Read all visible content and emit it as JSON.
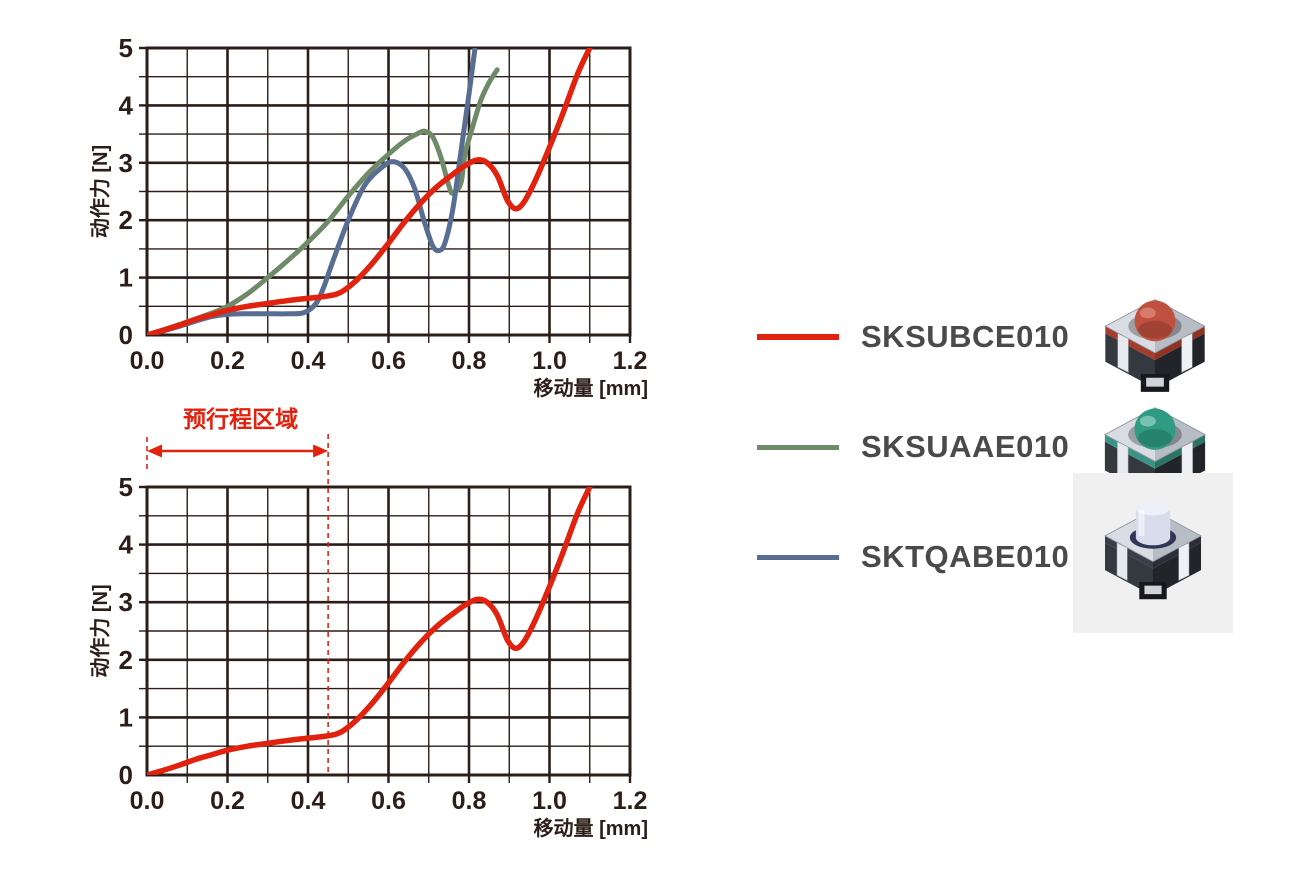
{
  "page": {
    "background": "#ffffff"
  },
  "colors": {
    "red": "#e0220e",
    "green": "#6f8a68",
    "blue": "#576e92",
    "grid": "#2b1d18",
    "legend_text": "#4a4a4a",
    "product_bg": "#f0f0f1"
  },
  "chart_data": [
    {
      "name": "force-travel-comparison",
      "type": "line",
      "title": "",
      "xlabel": "移动量 [mm]",
      "ylabel": "动作力 [N]",
      "xlim": [
        0,
        1.2
      ],
      "ylim": [
        0,
        5
      ],
      "x_ticks": [
        "0.0",
        "0.2",
        "0.4",
        "0.6",
        "0.8",
        "1.0",
        "1.2"
      ],
      "y_ticks": [
        "0",
        "1",
        "2",
        "3",
        "4",
        "5"
      ],
      "x_minor_step": 0.1,
      "y_minor_step": 0.5,
      "grid": true,
      "legend_position": "outside-right",
      "series": [
        {
          "name": "SKSUAAE010",
          "color": "#6f8a68",
          "points": [
            [
              0,
              0
            ],
            [
              0.04,
              0.09
            ],
            [
              0.08,
              0.18
            ],
            [
              0.12,
              0.28
            ],
            [
              0.16,
              0.38
            ],
            [
              0.2,
              0.5
            ],
            [
              0.25,
              0.72
            ],
            [
              0.3,
              1.0
            ],
            [
              0.35,
              1.3
            ],
            [
              0.4,
              1.62
            ],
            [
              0.45,
              1.98
            ],
            [
              0.5,
              2.42
            ],
            [
              0.55,
              2.82
            ],
            [
              0.6,
              3.15
            ],
            [
              0.64,
              3.38
            ],
            [
              0.67,
              3.5
            ],
            [
              0.69,
              3.55
            ],
            [
              0.71,
              3.45
            ],
            [
              0.73,
              3.1
            ],
            [
              0.75,
              2.6
            ],
            [
              0.76,
              2.47
            ],
            [
              0.78,
              2.65
            ],
            [
              0.79,
              3.15
            ],
            [
              0.81,
              3.65
            ],
            [
              0.83,
              4.1
            ],
            [
              0.85,
              4.4
            ],
            [
              0.87,
              4.62
            ]
          ]
        },
        {
          "name": "SKTQABE010",
          "color": "#576e92",
          "points": [
            [
              0,
              0
            ],
            [
              0.04,
              0.07
            ],
            [
              0.08,
              0.15
            ],
            [
              0.12,
              0.24
            ],
            [
              0.16,
              0.32
            ],
            [
              0.2,
              0.36
            ],
            [
              0.25,
              0.37
            ],
            [
              0.3,
              0.37
            ],
            [
              0.35,
              0.37
            ],
            [
              0.39,
              0.39
            ],
            [
              0.42,
              0.55
            ],
            [
              0.44,
              0.85
            ],
            [
              0.46,
              1.25
            ],
            [
              0.5,
              2.0
            ],
            [
              0.54,
              2.6
            ],
            [
              0.58,
              2.9
            ],
            [
              0.61,
              3.02
            ],
            [
              0.64,
              2.9
            ],
            [
              0.665,
              2.55
            ],
            [
              0.69,
              1.95
            ],
            [
              0.71,
              1.55
            ],
            [
              0.725,
              1.47
            ],
            [
              0.74,
              1.6
            ],
            [
              0.76,
              2.2
            ],
            [
              0.78,
              3.2
            ],
            [
              0.8,
              4.2
            ],
            [
              0.815,
              5.0
            ]
          ]
        },
        {
          "name": "SKSUBCE010",
          "color": "#e0220e",
          "points": [
            [
              0,
              0
            ],
            [
              0.04,
              0.08
            ],
            [
              0.08,
              0.17
            ],
            [
              0.12,
              0.27
            ],
            [
              0.16,
              0.35
            ],
            [
              0.2,
              0.43
            ],
            [
              0.25,
              0.5
            ],
            [
              0.3,
              0.55
            ],
            [
              0.35,
              0.6
            ],
            [
              0.4,
              0.64
            ],
            [
              0.44,
              0.67
            ],
            [
              0.47,
              0.71
            ],
            [
              0.49,
              0.78
            ],
            [
              0.52,
              0.95
            ],
            [
              0.56,
              1.25
            ],
            [
              0.6,
              1.6
            ],
            [
              0.64,
              1.97
            ],
            [
              0.68,
              2.3
            ],
            [
              0.72,
              2.58
            ],
            [
              0.76,
              2.8
            ],
            [
              0.79,
              2.95
            ],
            [
              0.82,
              3.05
            ],
            [
              0.845,
              3.0
            ],
            [
              0.87,
              2.78
            ],
            [
              0.895,
              2.35
            ],
            [
              0.915,
              2.2
            ],
            [
              0.935,
              2.3
            ],
            [
              0.96,
              2.62
            ],
            [
              0.99,
              3.1
            ],
            [
              1.03,
              3.8
            ],
            [
              1.07,
              4.55
            ],
            [
              1.1,
              5.0
            ]
          ]
        }
      ]
    },
    {
      "name": "force-travel-pretravel",
      "type": "line",
      "title": "",
      "xlabel": "移动量 [mm]",
      "ylabel": "动作力 [N]",
      "xlim": [
        0,
        1.2
      ],
      "ylim": [
        0,
        5
      ],
      "x_ticks": [
        "0.0",
        "0.2",
        "0.4",
        "0.6",
        "0.8",
        "1.0",
        "1.2"
      ],
      "y_ticks": [
        "0",
        "1",
        "2",
        "3",
        "4",
        "5"
      ],
      "x_minor_step": 0.1,
      "y_minor_step": 0.5,
      "grid": true,
      "annotation": {
        "label": "预行程区域",
        "x_start": 0,
        "x_end": 0.45,
        "color": "#e0220e"
      },
      "series": [
        {
          "name": "SKSUBCE010",
          "color": "#e0220e",
          "points": [
            [
              0,
              0
            ],
            [
              0.04,
              0.08
            ],
            [
              0.08,
              0.17
            ],
            [
              0.12,
              0.27
            ],
            [
              0.16,
              0.35
            ],
            [
              0.2,
              0.43
            ],
            [
              0.25,
              0.5
            ],
            [
              0.3,
              0.55
            ],
            [
              0.35,
              0.6
            ],
            [
              0.4,
              0.64
            ],
            [
              0.44,
              0.67
            ],
            [
              0.47,
              0.71
            ],
            [
              0.49,
              0.78
            ],
            [
              0.52,
              0.95
            ],
            [
              0.56,
              1.25
            ],
            [
              0.6,
              1.6
            ],
            [
              0.64,
              1.97
            ],
            [
              0.68,
              2.3
            ],
            [
              0.72,
              2.58
            ],
            [
              0.76,
              2.8
            ],
            [
              0.79,
              2.95
            ],
            [
              0.82,
              3.05
            ],
            [
              0.845,
              3.0
            ],
            [
              0.87,
              2.78
            ],
            [
              0.895,
              2.35
            ],
            [
              0.915,
              2.2
            ],
            [
              0.935,
              2.3
            ],
            [
              0.96,
              2.62
            ],
            [
              0.99,
              3.1
            ],
            [
              1.03,
              3.8
            ],
            [
              1.07,
              4.55
            ],
            [
              1.1,
              5.0
            ]
          ]
        }
      ]
    }
  ],
  "legend": {
    "items": [
      {
        "label": "SKSUBCE010",
        "color": "#e0220e"
      },
      {
        "label": "SKSUAAE010",
        "color": "#6f8a68"
      },
      {
        "label": "SKTQABE010",
        "color": "#576e92"
      }
    ]
  },
  "products": [
    {
      "name": "SKSUBCE010",
      "type": "dome",
      "dome": "#c0503f",
      "dome_hi": "#da8372",
      "accent": "#a63c2b",
      "accent2": "#8f3323"
    },
    {
      "name": "SKSUAAE010",
      "type": "dome",
      "dome": "#2f9b82",
      "dome_hi": "#86c9ba",
      "accent": "#3a9486",
      "accent2": "#2a7466"
    },
    {
      "name": "SKTQABE010",
      "type": "plunger",
      "dome": "#d9dcec",
      "dome_hi": "#eef0f9",
      "accent": "#3a3e4a",
      "accent2": "#2b2e38",
      "ring": "#303756",
      "bg": "#f0f0f1"
    }
  ]
}
